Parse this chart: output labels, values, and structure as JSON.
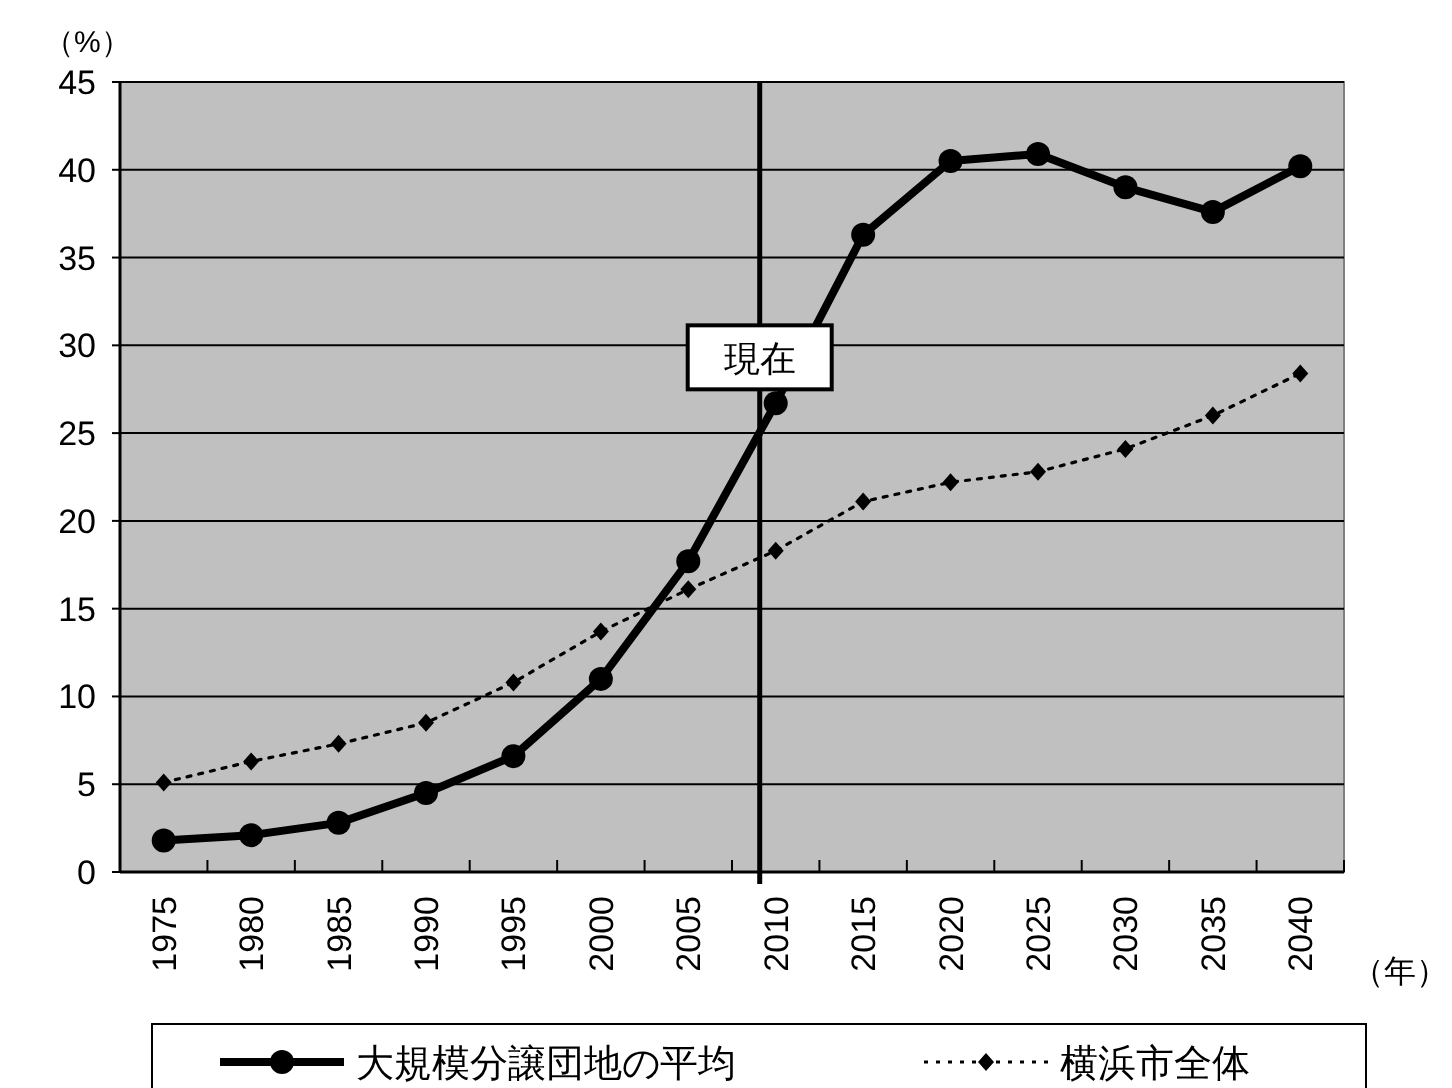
{
  "chart_data": {
    "type": "line",
    "ylabel": "（%）",
    "xlabel": "（年）",
    "categories": [
      "1975",
      "1980",
      "1985",
      "1990",
      "1995",
      "2000",
      "2005",
      "2010",
      "2015",
      "2020",
      "2025",
      "2030",
      "2035",
      "2040"
    ],
    "series": [
      {
        "name": "大規模分譲団地の平均",
        "color": "#000000",
        "marker": "circle",
        "line_style": "solid",
        "values": [
          1.8,
          2.1,
          2.8,
          4.5,
          6.6,
          11.0,
          17.7,
          26.7,
          36.3,
          40.5,
          40.9,
          39.0,
          37.6,
          40.2
        ]
      },
      {
        "name": "横浜市全体",
        "color": "#000000",
        "marker": "diamond",
        "line_style": "dotted",
        "values": [
          5.1,
          6.3,
          7.3,
          8.5,
          10.8,
          13.7,
          16.1,
          18.3,
          21.1,
          22.2,
          22.8,
          24.1,
          26.0,
          28.4
        ]
      }
    ],
    "ylim": [
      0,
      45
    ],
    "yticks": [
      0,
      5,
      10,
      15,
      20,
      25,
      30,
      35,
      40,
      45
    ],
    "grid": "y",
    "legend": "bottom",
    "ref_lines": [
      {
        "axis": "x",
        "value": "2010",
        "label": "現在",
        "color": "#000000"
      }
    ]
  }
}
